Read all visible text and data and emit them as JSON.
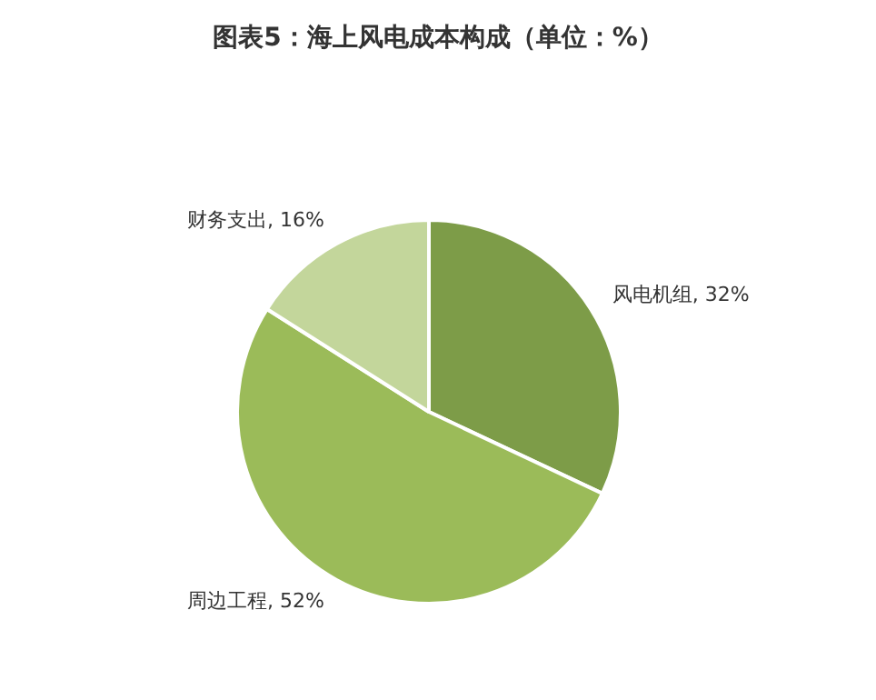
{
  "chart_data": {
    "type": "pie",
    "title": "图表5：海上风电成本构成（单位：%）",
    "categories": [
      "风电机组",
      "周边工程",
      "财务支出"
    ],
    "values": [
      32,
      52,
      16
    ],
    "colors": [
      "#7d9c48",
      "#9bbb59",
      "#c3d69b"
    ],
    "value_labels": [
      ", 32%",
      ", 52%",
      ", 16%"
    ],
    "legend": false
  }
}
